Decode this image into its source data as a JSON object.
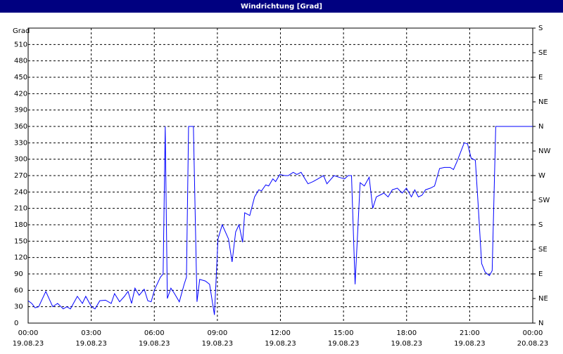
{
  "chart_data": {
    "type": "line",
    "title": "Windrichtung [Grad]",
    "y_label": "Grad",
    "color": "#0000ff",
    "grid": true,
    "xlim": [
      0,
      24
    ],
    "xticks": [
      {
        "value": 0,
        "label": [
          "00:00",
          "19.08.23"
        ]
      },
      {
        "value": 3,
        "label": [
          "03:00",
          "19.08.23"
        ]
      },
      {
        "value": 6,
        "label": [
          "06:00",
          "19.08.23"
        ]
      },
      {
        "value": 9,
        "label": [
          "09:00",
          "19.08.23"
        ]
      },
      {
        "value": 12,
        "label": [
          "12:00",
          "19.08.23"
        ]
      },
      {
        "value": 15,
        "label": [
          "15:00",
          "19.08.23"
        ]
      },
      {
        "value": 18,
        "label": [
          "18:00",
          "19.08.23"
        ]
      },
      {
        "value": 21,
        "label": [
          "21:00",
          "19.08.23"
        ]
      },
      {
        "value": 24,
        "label": [
          "00:00",
          "20.08.23"
        ]
      }
    ],
    "ylim": [
      0,
      540
    ],
    "yticks": [
      0,
      30,
      60,
      90,
      120,
      150,
      180,
      210,
      240,
      270,
      300,
      330,
      360,
      390,
      420,
      450,
      480,
      510
    ],
    "y2lim": [
      0,
      540
    ],
    "y2ticks": [
      {
        "value": 0,
        "label": "N"
      },
      {
        "value": 45,
        "label": "NE"
      },
      {
        "value": 90,
        "label": "E"
      },
      {
        "value": 135,
        "label": "SE"
      },
      {
        "value": 180,
        "label": "S"
      },
      {
        "value": 225,
        "label": "SW"
      },
      {
        "value": 270,
        "label": "W"
      },
      {
        "value": 315,
        "label": "NW"
      },
      {
        "value": 360,
        "label": "N"
      },
      {
        "value": 405,
        "label": "NE"
      },
      {
        "value": 450,
        "label": "E"
      },
      {
        "value": 495,
        "label": "SE"
      },
      {
        "value": 540,
        "label": "S"
      }
    ],
    "x": [
      0,
      0.17,
      0.33,
      0.5,
      0.84,
      1.17,
      1.4,
      1.67,
      1.84,
      2.01,
      2.34,
      2.58,
      2.74,
      3.01,
      3.18,
      3.41,
      3.68,
      3.95,
      4.11,
      4.35,
      4.58,
      4.75,
      4.92,
      5.08,
      5.28,
      5.52,
      5.69,
      5.85,
      6.02,
      6.29,
      6.42,
      6.52,
      6.62,
      6.79,
      6.96,
      7.19,
      7.42,
      7.53,
      7.63,
      7.86,
      8.03,
      8.16,
      8.43,
      8.63,
      8.86,
      9.03,
      9.23,
      9.53,
      9.7,
      9.87,
      10.03,
      10.2,
      10.3,
      10.54,
      10.77,
      10.97,
      11.1,
      11.3,
      11.44,
      11.64,
      11.77,
      11.97,
      12.21,
      12.37,
      12.61,
      12.78,
      12.98,
      13.31,
      13.55,
      13.78,
      14.05,
      14.21,
      14.55,
      14.78,
      15.05,
      15.22,
      15.38,
      15.55,
      15.79,
      15.99,
      16.22,
      16.39,
      16.56,
      16.72,
      16.92,
      17.12,
      17.32,
      17.56,
      17.79,
      17.99,
      18.23,
      18.39,
      18.56,
      18.73,
      18.9,
      19.13,
      19.33,
      19.57,
      19.8,
      20.07,
      20.23,
      20.4,
      20.74,
      20.9,
      21.07,
      21.27,
      21.4,
      21.57,
      21.74,
      21.94,
      22.07,
      22.24,
      22.41,
      24
    ],
    "values": [
      41,
      36,
      28,
      30,
      58,
      30,
      36,
      26,
      30,
      26,
      49,
      36,
      49,
      30,
      26,
      41,
      42,
      36,
      54,
      39,
      49,
      58,
      36,
      64,
      51,
      62,
      41,
      39,
      62,
      84,
      90,
      360,
      45,
      64,
      54,
      39,
      71,
      84,
      360,
      360,
      39,
      80,
      77,
      71,
      15,
      154,
      180,
      154,
      112,
      167,
      180,
      148,
      202,
      197,
      231,
      244,
      242,
      253,
      251,
      264,
      259,
      272,
      270,
      270,
      276,
      272,
      276,
      255,
      259,
      264,
      270,
      255,
      270,
      267,
      264,
      270,
      270,
      71,
      257,
      251,
      267,
      210,
      231,
      234,
      238,
      231,
      244,
      247,
      238,
      247,
      231,
      244,
      231,
      234,
      244,
      247,
      251,
      283,
      285,
      285,
      281,
      296,
      330,
      328,
      302,
      298,
      219,
      109,
      93,
      87,
      96,
      360,
      360,
      360
    ]
  }
}
